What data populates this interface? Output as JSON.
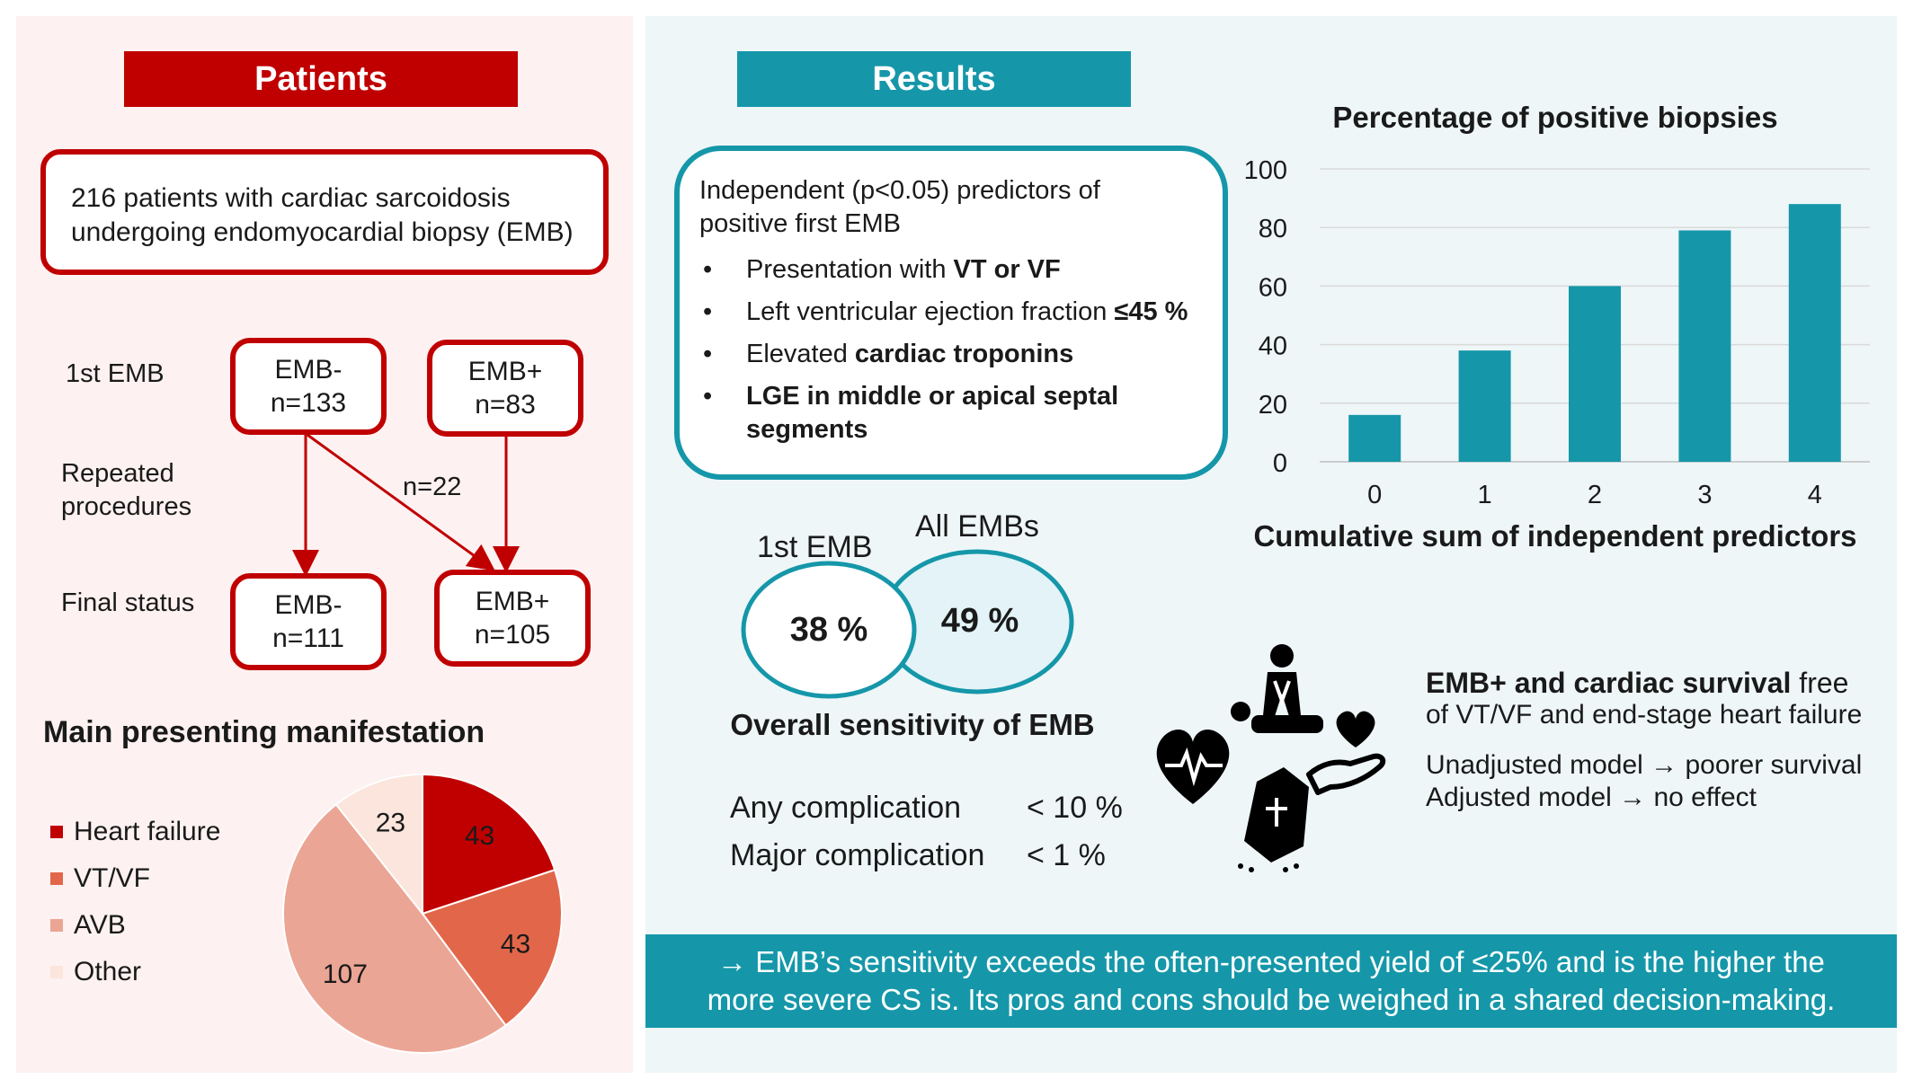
{
  "patients": {
    "header": "Patients",
    "intro_line1": "216 patients with cardiac sarcoidosis",
    "intro_line2": "undergoing endomyocardial biopsy (EMB)",
    "row_labels": {
      "first_emb": "1st EMB",
      "repeated_line1": "Repeated",
      "repeated_line2": "procedures",
      "final_status": "Final status"
    },
    "flow": {
      "first_neg": {
        "label": "EMB-",
        "count": "n=133"
      },
      "first_pos": {
        "label": "EMB+",
        "count": "n=83"
      },
      "final_neg": {
        "label": "EMB-",
        "count": "n=111"
      },
      "final_pos": {
        "label": "EMB+",
        "count": "n=105"
      },
      "crossover": "n=22"
    },
    "manifestation_title": "Main presenting manifestation",
    "legend": [
      {
        "label": "Heart failure",
        "color": "#c00000"
      },
      {
        "label": "VT/VF",
        "color": "#e2674a"
      },
      {
        "label": "AVB",
        "color": "#eba594"
      },
      {
        "label": "Other",
        "color": "#fbe5dc"
      }
    ]
  },
  "results": {
    "header": "Results",
    "predictors_title_line1": "Independent (p<0.05) predictors of",
    "predictors_title_line2": "positive first EMB",
    "predictors": [
      {
        "plain": "Presentation with ",
        "bold": "VT or VF",
        "after": ""
      },
      {
        "plain": "Left ventricular ejection fraction ",
        "bold": "≤45 %",
        "after": ""
      },
      {
        "plain": "Elevated ",
        "bold": "cardiac troponins",
        "after": ""
      },
      {
        "plain": "",
        "bold": "LGE in middle or apical septal segments",
        "after": ""
      }
    ],
    "sensitivity": {
      "first_label": "1st EMB",
      "first_value": "38 %",
      "all_label": "All EMBs",
      "all_value": "49 %",
      "title": "Overall sensitivity of EMB"
    },
    "complications": [
      {
        "label": "Any complication",
        "value": "< 10 %"
      },
      {
        "label": "Major complication",
        "value": "< 1 %"
      }
    ],
    "survival": {
      "title_bold": "EMB+ and cardiac survival",
      "title_rest": " free",
      "line2": "of VT/VF and end-stage heart failure",
      "unadjusted": "Unadjusted model → poorer survival",
      "adjusted": "Adjusted model → no effect"
    },
    "conclusion_line1": "→ EMB’s sensitivity exceeds the often-presented yield of ≤25% and is the higher the",
    "conclusion_line2": "more severe CS is. Its pros and cons should be weighed in a shared decision-making."
  },
  "icons": [
    "cpr-icon",
    "heart-ecg-icon",
    "heart-in-hand-icon",
    "coffin-icon"
  ],
  "colors": {
    "red": "#c00000",
    "teal": "#1597a9"
  },
  "chart_data": [
    {
      "type": "pie",
      "title": "Main presenting manifestation",
      "categories": [
        "Heart failure",
        "VT/VF",
        "AVB",
        "Other"
      ],
      "values": [
        43,
        43,
        107,
        23
      ],
      "colors": [
        "#c00000",
        "#e2674a",
        "#eba594",
        "#fbe5dc"
      ],
      "legend": "left"
    },
    {
      "type": "bar",
      "title": "Percentage of positive biopsies",
      "xlabel": "Cumulative sum of independent predictors",
      "ylabel": "",
      "categories": [
        "0",
        "1",
        "2",
        "3",
        "4"
      ],
      "values": [
        16,
        38,
        60,
        79,
        88
      ],
      "ylim": [
        0,
        100
      ],
      "yticks": [
        0,
        20,
        40,
        60,
        80,
        100
      ],
      "grid": true,
      "color": "#1597a9"
    }
  ]
}
